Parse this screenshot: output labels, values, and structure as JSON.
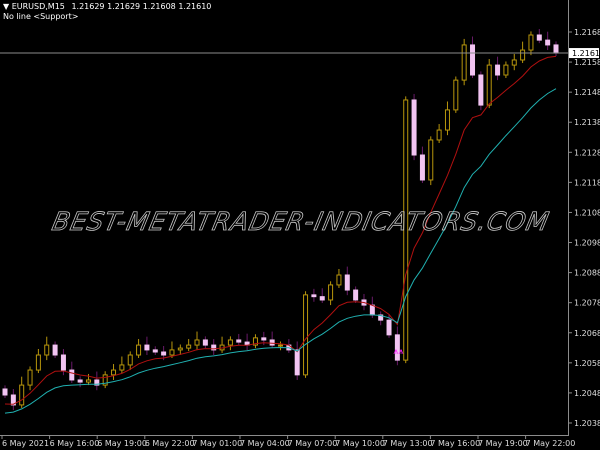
{
  "header": {
    "symbol": "EURUSD,M15",
    "ohlc": "1.21629 1.21629 1.21608 1.21610",
    "subtitle": "No line <Support>"
  },
  "watermark": "BEST-METATRADER-INDICATORS.COM",
  "colors": {
    "background": "#000000",
    "axis": "#8c8c8c",
    "bull_candle": "#b8960c",
    "bear_candle": "#f2c4f2",
    "wick": "#6a1a6a",
    "ma_fast": "#b01010",
    "ma_slow": "#20b0b0",
    "price_line": "#8c8c8c",
    "signal_marker": "#ff20ff"
  },
  "chart_data": {
    "type": "candlestick",
    "symbol": "EURUSD",
    "timeframe": "M15",
    "ylim": [
      1.2034,
      1.2172
    ],
    "y_ticks": [
      "1.21680",
      "1.21580",
      "1.21480",
      "1.21380",
      "1.21280",
      "1.21180",
      "1.21080",
      "1.20980",
      "1.20880",
      "1.20780",
      "1.20680",
      "1.20580",
      "1.20480",
      "1.20380"
    ],
    "x_ticks": [
      "6 May 2021",
      "6 May 16:00",
      "6 May 19:00",
      "6 May 22:00",
      "7 May 01:00",
      "7 May 04:00",
      "7 May 07:00",
      "7 May 10:00",
      "7 May 13:00",
      "7 May 16:00",
      "7 May 19:00",
      "7 May 22:00"
    ],
    "current_price": "1.21610",
    "closes": [
      1.20473,
      1.2044,
      1.20506,
      1.20556,
      1.20606,
      1.20639,
      1.20606,
      1.20556,
      1.20523,
      1.20516,
      1.20523,
      1.20506,
      1.2054,
      1.20556,
      1.20573,
      1.20606,
      1.20639,
      1.20623,
      1.20616,
      1.20606,
      1.20623,
      1.20629,
      1.20639,
      1.20656,
      1.20639,
      1.20623,
      1.20639,
      1.20656,
      1.20649,
      1.20639,
      1.20663,
      1.20656,
      1.20639,
      1.20639,
      1.20623,
      1.2054,
      1.20806,
      1.208,
      1.20789,
      1.20839,
      1.20872,
      1.20822,
      1.20789,
      1.20772,
      1.20739,
      1.20722,
      1.20673,
      1.20589,
      1.21454,
      1.21271,
      1.21188,
      1.21321,
      1.21354,
      1.21421,
      1.2152,
      1.21637,
      1.21537,
      1.21437,
      1.2157,
      1.21537,
      1.2157,
      1.21587,
      1.2162,
      1.2167,
      1.21653,
      1.21637,
      1.2161
    ],
    "series": [
      {
        "type": "moving-average",
        "color": "#b01010"
      },
      {
        "type": "moving-average",
        "color": "#20b0b0"
      }
    ],
    "grid": false
  }
}
